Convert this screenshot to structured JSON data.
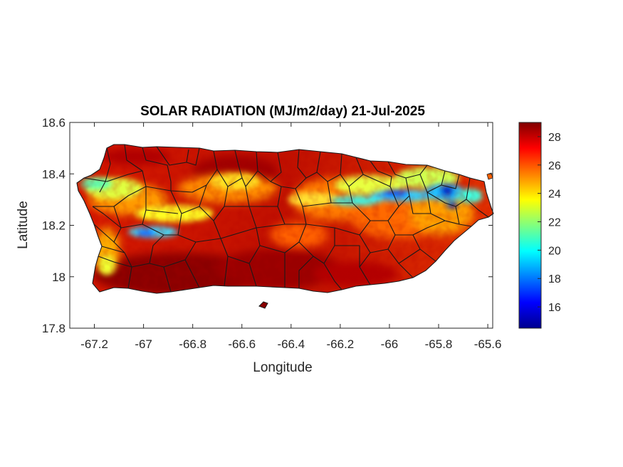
{
  "map": {
    "title": "SOLAR RADIATION (MJ/m2/day) 21-Jul-2025",
    "xlabel": "Longitude",
    "ylabel": "Latitude",
    "xlim": [
      -67.3,
      -65.58
    ],
    "ylim": [
      17.8,
      18.6
    ],
    "x_ticks": [
      -67.2,
      -67,
      -66.8,
      -66.6,
      -66.4,
      -66.2,
      -66,
      -65.8,
      -65.6
    ],
    "x_tick_labels": [
      "-67.2",
      "-67",
      "-66.8",
      "-66.6",
      "-66.4",
      "-66.2",
      "-66",
      "-65.8",
      "-65.6"
    ],
    "y_ticks": [
      17.8,
      18,
      18.2,
      18.4,
      18.6
    ],
    "y_tick_labels": [
      "17.8",
      "18",
      "18.2",
      "18.4",
      "18.6"
    ],
    "region": "Puerto Rico municipalities",
    "colormap": "jet",
    "colorbar": {
      "range": [
        14.5,
        29
      ],
      "ticks": [
        16,
        18,
        20,
        22,
        24,
        26,
        28
      ],
      "tick_labels": [
        "16",
        "18",
        "20",
        "22",
        "24",
        "26",
        "28"
      ],
      "colors": [
        "#00008f",
        "#0000ff",
        "#0080ff",
        "#00ffff",
        "#80ff80",
        "#ffff00",
        "#ff8000",
        "#ff0000",
        "#800000"
      ]
    },
    "low_radiation_zones": [
      {
        "area": "northeast near El Yunque",
        "value": 18
      },
      {
        "area": "north-central corridor",
        "value": 19
      },
      {
        "area": "western interior near Maricao",
        "value": 19
      }
    ],
    "high_radiation_zones": [
      {
        "area": "southern coast",
        "value": 28.5
      },
      {
        "area": "north-central coast",
        "value": 28
      }
    ]
  }
}
